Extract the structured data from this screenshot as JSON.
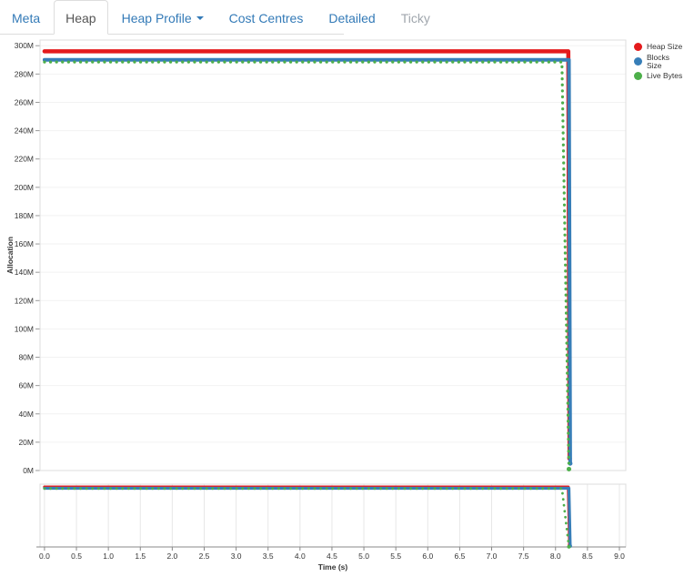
{
  "tabs": [
    {
      "label": "Meta",
      "state": "link"
    },
    {
      "label": "Heap",
      "state": "active"
    },
    {
      "label": "Heap Profile",
      "state": "dropdown"
    },
    {
      "label": "Cost Centres",
      "state": "link"
    },
    {
      "label": "Detailed",
      "state": "link"
    },
    {
      "label": "Ticky",
      "state": "disabled"
    }
  ],
  "colors": {
    "link_blue": "#337ab7",
    "active_tab_text": "#555555",
    "disabled_tab_text": "#a0a6ad",
    "grid_light": "#f2f2f2",
    "grid_vertical": "#e7e7e7",
    "chart_border": "#dddddd",
    "axis_line": "#888888",
    "tick_text": "#333333"
  },
  "chart_data": {
    "type": "line",
    "title": "",
    "xlabel": "Time (s)",
    "ylabel": "Allocation",
    "x_unit": "s",
    "y_tick_suffix": "M",
    "xlim": [
      -0.07,
      9.1
    ],
    "x_ticks": [
      0,
      0.5,
      1,
      1.5,
      2,
      2.5,
      3,
      3.5,
      4,
      4.5,
      5,
      5.5,
      6,
      6.5,
      7,
      7.5,
      8,
      8.5,
      9
    ],
    "y_ticks": [
      0,
      20,
      40,
      60,
      80,
      100,
      120,
      140,
      160,
      180,
      200,
      220,
      240,
      260,
      280,
      300
    ],
    "main_ylim": [
      0,
      304
    ],
    "overview_ylim": [
      0,
      310
    ],
    "legend_position": "top-right-outside",
    "grid": {
      "main": "horizontal",
      "overview": "vertical"
    },
    "series": [
      {
        "name": "Heap Size",
        "color": "#e41a1c",
        "style": "solid",
        "points": [
          [
            0,
            296
          ],
          [
            8.2,
            296
          ],
          [
            8.22,
            8.5
          ]
        ]
      },
      {
        "name": "Blocks Size",
        "color": "#377eb8",
        "style": "solid",
        "points": [
          [
            0,
            290
          ],
          [
            8.21,
            290
          ],
          [
            8.23,
            5
          ]
        ]
      },
      {
        "name": "Live Bytes",
        "color": "#4daf4a",
        "style": "dotted",
        "points": [
          [
            0,
            288.5
          ],
          [
            8.1,
            288.5
          ],
          [
            8.21,
            1
          ]
        ]
      }
    ]
  }
}
